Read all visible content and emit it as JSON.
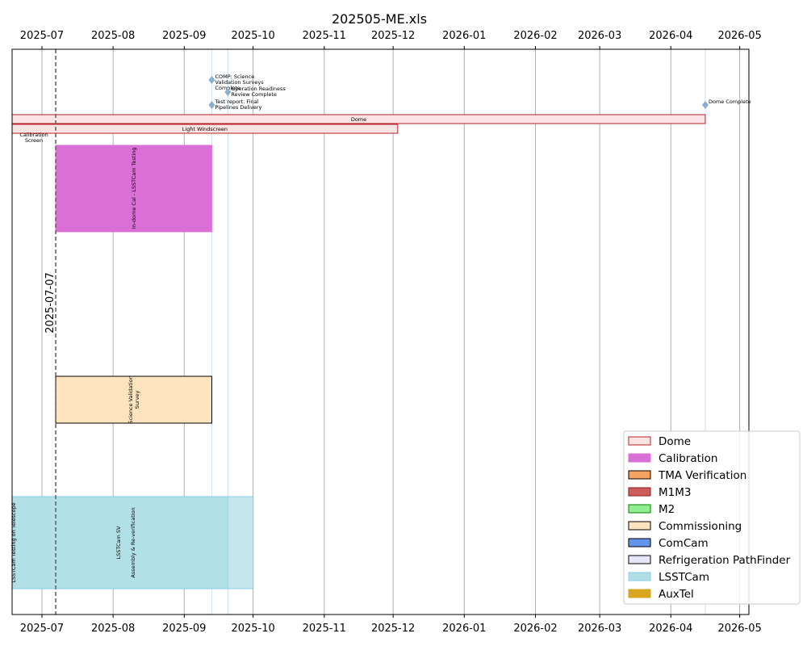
{
  "chart_data": {
    "type": "gantt",
    "title": "202505-ME.xls",
    "xlim": [
      "2025-06-18",
      "2026-05-05"
    ],
    "x_ticks": [
      "2025-07",
      "2025-08",
      "2025-09",
      "2025-10",
      "2025-11",
      "2025-12",
      "2026-01",
      "2026-02",
      "2026-03",
      "2026-04",
      "2026-05"
    ],
    "x_tick_dates": [
      "2025-07-01",
      "2025-08-01",
      "2025-09-01",
      "2025-10-01",
      "2025-11-01",
      "2025-12-01",
      "2026-01-01",
      "2026-02-01",
      "2026-03-01",
      "2026-04-01",
      "2026-05-01"
    ],
    "grid": "vertical",
    "today_line": {
      "date": "2025-07-07",
      "label": "2025-07-07"
    },
    "milestone_lines": [
      "2025-09-13",
      "2025-09-20",
      "2026-04-16"
    ],
    "bars": [
      {
        "label": "Dome",
        "group": "Dome",
        "start": "2025-06-18",
        "end": "2026-04-16",
        "row": 1,
        "orientation": "horizontal"
      },
      {
        "label": "Light Windscreen",
        "group": "Dome",
        "start": "2025-06-18",
        "end": "2025-12-03",
        "row": 2,
        "orientation": "horizontal"
      },
      {
        "label": "Calibration Screen",
        "group": "Dome",
        "start": "2025-06-18",
        "end": "2025-07-07",
        "row": 3,
        "orientation": "horizontal"
      },
      {
        "label": "In-dome Cal - LSSTCam Testing",
        "group": "Calibration",
        "start": "2025-07-07",
        "end": "2025-09-13",
        "row": 4,
        "orientation": "vertical"
      },
      {
        "label": "Science Validation Survey",
        "group": "Commissioning",
        "start": "2025-07-07",
        "end": "2025-09-13",
        "row": 5,
        "orientation": "vertical"
      },
      {
        "label": "LSSTCam Testing on Telescope",
        "group": "LSSTCam",
        "start": "2025-06-18",
        "end": "2025-09-20",
        "row": 6,
        "orientation": "vertical"
      },
      {
        "label": "LSSTCam SV",
        "group": "LSSTCam",
        "start": "2025-06-18",
        "end": "2025-09-20",
        "row": 6,
        "orientation": "vertical"
      },
      {
        "label": "Assembly & Re-verification",
        "group": "LSSTCam",
        "start": "2025-06-18",
        "end": "2025-10-01",
        "row": 6,
        "orientation": "vertical"
      }
    ],
    "milestones": [
      {
        "label": "COMP: Science Validation Surveys Complete",
        "date": "2025-09-13"
      },
      {
        "label": "Operation Readiness Review Complete",
        "date": "2025-09-20"
      },
      {
        "label": "Test report: Final Pipelines Delivery",
        "date": "2025-09-13"
      },
      {
        "label": "Dome Complete",
        "date": "2026-04-16"
      }
    ],
    "legend": {
      "placement": "lower-right",
      "entries": [
        {
          "name": "Dome",
          "fill": "#fde4e4",
          "edge": "#b22222"
        },
        {
          "name": "Calibration",
          "fill": "#da70d6",
          "edge": "#da70d6"
        },
        {
          "name": "TMA Verification",
          "fill": "#f4a460",
          "edge": "#000000"
        },
        {
          "name": "M1M3",
          "fill": "#cd5c5c",
          "edge": "#8b1a1a"
        },
        {
          "name": "M2",
          "fill": "#90ee90",
          "edge": "#008000"
        },
        {
          "name": "Commissioning",
          "fill": "#ffe4c0",
          "edge": "#000000"
        },
        {
          "name": "ComCam",
          "fill": "#6495ed",
          "edge": "#000000"
        },
        {
          "name": "Refrigeration PathFinder",
          "fill": "#e6e6fa",
          "edge": "#000000"
        },
        {
          "name": "LSSTCam",
          "fill": "#b0dfe5",
          "edge": "#87ceeb"
        },
        {
          "name": "AuxTel",
          "fill": "#daa520",
          "edge": "#daa520"
        }
      ]
    },
    "colors": {
      "grid": "#b0b0b0",
      "today_line": "#666666",
      "milestone": "#8ab0d0",
      "milestone_line": "#cde3f3"
    }
  }
}
